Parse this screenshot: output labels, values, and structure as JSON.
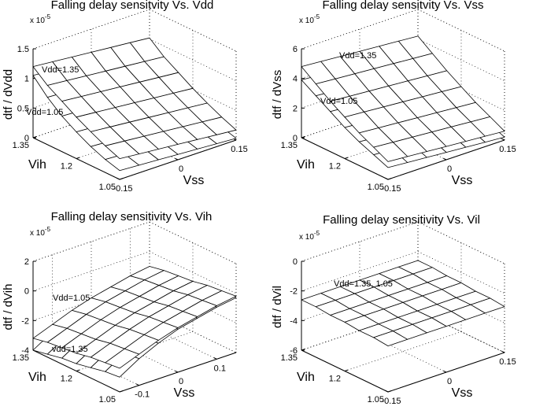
{
  "chart_data": [
    {
      "type": "surface",
      "title": "Falling delay sensitvity Vs. Vdd",
      "exponent_label": {
        "base": "x 10",
        "power": "-5"
      },
      "zlabel": "dtf / dVdd",
      "xlabel": "Vss",
      "ylabel": "Vih",
      "grid": true,
      "x": [
        -0.15,
        -0.1,
        -0.05,
        0,
        0.05,
        0.1,
        0.15
      ],
      "y": [
        1.05,
        1.1,
        1.15,
        1.2,
        1.25,
        1.3,
        1.35
      ],
      "xlim": [
        -0.15,
        0.15
      ],
      "ylim": [
        1.05,
        1.35
      ],
      "zlim": [
        0,
        1.5
      ],
      "xticks": [
        -0.15,
        0,
        0.15
      ],
      "yticks": [
        1.05,
        1.2,
        1.35
      ],
      "zticks": [
        0,
        0.5,
        1,
        1.5
      ],
      "series": [
        {
          "name": "Vdd=1.35",
          "values": [
            [
              0.35,
              0.32,
              0.29,
              0.26,
              0.23,
              0.2,
              0.17
            ],
            [
              0.45,
              0.42,
              0.39,
              0.36,
              0.33,
              0.3,
              0.27
            ],
            [
              0.57,
              0.54,
              0.51,
              0.48,
              0.45,
              0.42,
              0.39
            ],
            [
              0.7,
              0.67,
              0.64,
              0.61,
              0.58,
              0.55,
              0.52
            ],
            [
              0.85,
              0.82,
              0.79,
              0.76,
              0.73,
              0.7,
              0.67
            ],
            [
              1.0,
              0.97,
              0.94,
              0.91,
              0.88,
              0.85,
              0.82
            ],
            [
              1.2,
              1.17,
              1.14,
              1.11,
              1.08,
              1.05,
              1.02
            ]
          ]
        },
        {
          "name": "Vdd=1.05",
          "values": [
            [
              0.15,
              0.13,
              0.11,
              0.09,
              0.07,
              0.05,
              0.03
            ],
            [
              0.22,
              0.2,
              0.18,
              0.16,
              0.14,
              0.12,
              0.1
            ],
            [
              0.32,
              0.3,
              0.28,
              0.26,
              0.24,
              0.22,
              0.2
            ],
            [
              0.45,
              0.43,
              0.41,
              0.39,
              0.37,
              0.35,
              0.33
            ],
            [
              0.6,
              0.58,
              0.56,
              0.54,
              0.52,
              0.5,
              0.48
            ],
            [
              0.8,
              0.78,
              0.76,
              0.74,
              0.72,
              0.7,
              0.68
            ],
            [
              1.05,
              1.03,
              1.01,
              0.99,
              0.97,
              0.95,
              0.93
            ]
          ]
        }
      ]
    },
    {
      "type": "surface",
      "title": "Falling delay sensitvity Vs. Vss",
      "exponent_label": {
        "base": "x 10",
        "power": "-5"
      },
      "zlabel": "dtf / dVss",
      "xlabel": "Vss",
      "ylabel": "Vih",
      "grid": true,
      "x": [
        -0.15,
        -0.1,
        -0.05,
        0,
        0.05,
        0.1,
        0.15
      ],
      "y": [
        1.05,
        1.1,
        1.15,
        1.2,
        1.25,
        1.3,
        1.35
      ],
      "xlim": [
        -0.15,
        0.15
      ],
      "ylim": [
        1.05,
        1.35
      ],
      "zlim": [
        0,
        6
      ],
      "xticks": [
        -0.15,
        0,
        0.15
      ],
      "yticks": [
        1.05,
        1.2,
        1.35
      ],
      "zticks": [
        0,
        2,
        4,
        6
      ],
      "series": [
        {
          "name": "Vdd=1.35",
          "values": [
            [
              1.2,
              1.1,
              1.0,
              0.9,
              0.8,
              0.7,
              0.6
            ],
            [
              1.7,
              1.6,
              1.5,
              1.4,
              1.3,
              1.2,
              1.1
            ],
            [
              2.2,
              2.1,
              2.0,
              1.9,
              1.8,
              1.7,
              1.6
            ],
            [
              2.8,
              2.7,
              2.6,
              2.5,
              2.4,
              2.3,
              2.2
            ],
            [
              3.4,
              3.3,
              3.2,
              3.1,
              3.0,
              2.9,
              2.8
            ],
            [
              4.1,
              4.0,
              3.9,
              3.8,
              3.7,
              3.6,
              3.5
            ],
            [
              4.8,
              4.7,
              4.6,
              4.5,
              4.4,
              4.3,
              4.2
            ]
          ]
        },
        {
          "name": "Vdd=1.05",
          "values": [
            [
              0.8,
              0.7,
              0.6,
              0.5,
              0.4,
              0.3,
              0.2
            ],
            [
              1.2,
              1.1,
              1.0,
              0.9,
              0.8,
              0.7,
              0.6
            ],
            [
              1.6,
              1.5,
              1.4,
              1.3,
              1.2,
              1.1,
              1.0
            ],
            [
              2.1,
              2.0,
              1.9,
              1.8,
              1.7,
              1.6,
              1.5
            ],
            [
              2.7,
              2.6,
              2.5,
              2.4,
              2.3,
              2.2,
              2.1
            ],
            [
              3.3,
              3.2,
              3.1,
              3.0,
              2.9,
              2.8,
              2.7
            ],
            [
              3.9,
              3.8,
              3.7,
              3.6,
              3.5,
              3.4,
              3.3
            ]
          ]
        }
      ]
    },
    {
      "type": "surface",
      "title": "Falling delay sensitivity Vs. Vih",
      "exponent_label": {
        "base": "x 10",
        "power": "-5"
      },
      "zlabel": "dtf / dVih",
      "xlabel": "Vss",
      "ylabel": "Vih",
      "grid": true,
      "x": [
        -0.15,
        -0.1,
        -0.05,
        0,
        0.05,
        0.1,
        0.15
      ],
      "y": [
        1.05,
        1.1,
        1.15,
        1.2,
        1.25,
        1.3,
        1.35
      ],
      "xlim": [
        -0.15,
        0.15
      ],
      "ylim": [
        1.05,
        1.35
      ],
      "zlim": [
        -4,
        2
      ],
      "xticks": [
        -0.1,
        0,
        0.1
      ],
      "yticks": [
        1.05,
        1.2,
        1.35
      ],
      "zticks": [
        -4,
        -2,
        0,
        2
      ],
      "series": [
        {
          "name": "Vdd=1.05",
          "values": [
            [
              -2.4,
              -1.9,
              -1.4,
              -1.0,
              -0.7,
              -0.4,
              -0.2
            ],
            [
              -2.5,
              -2.0,
              -1.5,
              -1.1,
              -0.8,
              -0.5,
              -0.3
            ],
            [
              -2.6,
              -2.1,
              -1.6,
              -1.2,
              -0.9,
              -0.6,
              -0.4
            ],
            [
              -2.8,
              -2.3,
              -1.8,
              -1.4,
              -1.1,
              -0.8,
              -0.6
            ],
            [
              -2.9,
              -2.4,
              -1.9,
              -1.5,
              -1.2,
              -0.9,
              -0.7
            ],
            [
              -3.0,
              -2.5,
              -2.0,
              -1.6,
              -1.3,
              -1.0,
              -0.8
            ],
            [
              -3.2,
              -2.7,
              -2.2,
              -1.8,
              -1.5,
              -1.2,
              -1.0
            ]
          ]
        },
        {
          "name": "vdd=1.35",
          "values": [
            [
              -3.0,
              -2.2,
              -1.6,
              -1.1,
              -0.8,
              -0.5,
              -0.3
            ],
            [
              -3.1,
              -2.3,
              -1.7,
              -1.2,
              -0.9,
              -0.6,
              -0.4
            ],
            [
              -3.3,
              -2.5,
              -1.9,
              -1.4,
              -1.0,
              -0.7,
              -0.5
            ],
            [
              -3.5,
              -2.7,
              -2.0,
              -1.5,
              -1.1,
              -0.8,
              -0.6
            ],
            [
              -3.6,
              -2.8,
              -2.1,
              -1.6,
              -1.2,
              -0.9,
              -0.8
            ],
            [
              -3.8,
              -3.0,
              -2.3,
              -1.8,
              -1.4,
              -1.0,
              -0.9
            ],
            [
              -4.0,
              -3.2,
              -2.5,
              -2.0,
              -1.6,
              -1.2,
              -1.1
            ]
          ]
        }
      ]
    },
    {
      "type": "surface",
      "title": "Falling delay sensitivity Vs. Vil",
      "exponent_label": {
        "base": "x 10",
        "power": "-5"
      },
      "zlabel": "dtf / dVil",
      "xlabel": "Vss",
      "ylabel": "Vih",
      "grid": true,
      "x": [
        -0.15,
        -0.1,
        -0.05,
        0,
        0.05,
        0.1,
        0.15
      ],
      "y": [
        1.05,
        1.1,
        1.15,
        1.2,
        1.25,
        1.3,
        1.35
      ],
      "xlim": [
        -0.15,
        0.15
      ],
      "ylim": [
        1.05,
        1.35
      ],
      "zlim": [
        -6,
        0
      ],
      "xticks": [
        -0.15,
        0,
        0.15
      ],
      "yticks": [
        1.05,
        1.2,
        1.35
      ],
      "zticks": [
        -6,
        -4,
        -2,
        0
      ],
      "series": [
        {
          "name": "Vdd=1.35, 1.05",
          "values": [
            [
              -2.9,
              -2.9,
              -2.9,
              -2.9,
              -2.9,
              -2.9,
              -2.9
            ],
            [
              -2.8,
              -2.8,
              -2.8,
              -2.8,
              -2.8,
              -2.8,
              -2.8
            ],
            [
              -2.8,
              -2.8,
              -2.8,
              -2.8,
              -2.8,
              -2.8,
              -2.8
            ],
            [
              -2.7,
              -2.7,
              -2.7,
              -2.7,
              -2.7,
              -2.7,
              -2.7
            ],
            [
              -2.7,
              -2.7,
              -2.7,
              -2.7,
              -2.7,
              -2.7,
              -2.7
            ],
            [
              -2.6,
              -2.6,
              -2.6,
              -2.6,
              -2.6,
              -2.6,
              -2.6
            ],
            [
              -2.6,
              -2.6,
              -2.6,
              -2.6,
              -2.6,
              -2.6,
              -2.6
            ]
          ]
        }
      ]
    }
  ]
}
